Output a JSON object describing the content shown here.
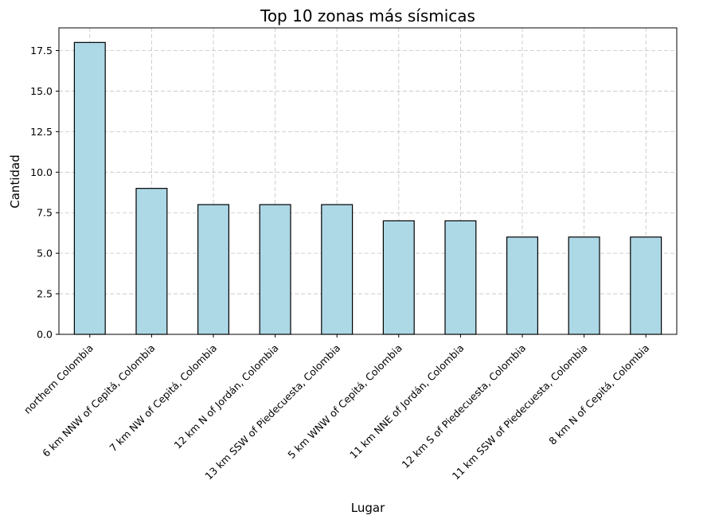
{
  "chart_data": {
    "type": "bar",
    "title": "Top 10 zonas más sísmicas",
    "xlabel": "Lugar",
    "ylabel": "Cantidad",
    "categories": [
      "northern Colombia",
      "6 km NNW of Cepitá, Colombia",
      "7 km NW of Cepitá, Colombia",
      "12 km N of Jordán, Colombia",
      "13 km SSW of Piedecuesta, Colombia",
      "5 km WNW of Cepitá, Colombia",
      "11 km NNE of Jordán, Colombia",
      "12 km S of Piedecuesta, Colombia",
      "11 km SSW of Piedecuesta, Colombia",
      "8 km N of Cepitá, Colombia"
    ],
    "values": [
      18,
      9,
      8,
      8,
      8,
      7,
      7,
      6,
      6,
      6
    ],
    "ylim": [
      0,
      18.9
    ],
    "yticks": [
      "0.0",
      "2.5",
      "5.0",
      "7.5",
      "10.0",
      "12.5",
      "15.0",
      "17.5"
    ],
    "grid": true,
    "bar_color": "#add8e6",
    "edge_color": "#000000"
  }
}
